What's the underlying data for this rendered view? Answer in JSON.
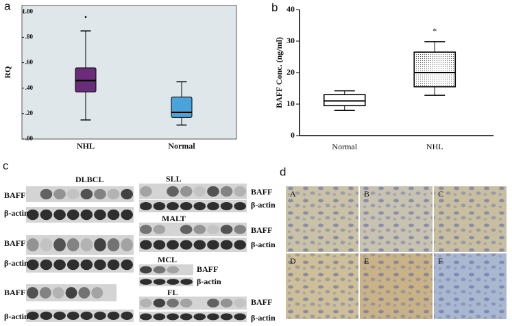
{
  "chart_data": [
    {
      "type": "box",
      "ylabel": "RQ",
      "categories": [
        "NHL",
        "Normal"
      ],
      "values": [
        {
          "low": 0.15,
          "q1": 0.37,
          "median": 0.46,
          "q3": 0.56,
          "high": 0.85
        },
        {
          "low": 0.11,
          "q1": 0.17,
          "median": 0.21,
          "q3": 0.33,
          "high": 0.45
        }
      ],
      "outliers": [
        [
          0.96
        ],
        []
      ],
      "colors": [
        "#6a2b78",
        "#4ba3dc"
      ],
      "ylim": [
        0,
        1.05
      ],
      "yticks": [
        {
          "value": 0,
          "label": ".00"
        },
        {
          "value": 0.2,
          "label": ".20"
        },
        {
          "value": 0.4,
          "label": ".40"
        },
        {
          "value": 0.6,
          "label": ".60"
        },
        {
          "value": 0.8,
          "label": ".80"
        },
        {
          "value": 1.0,
          "label": "1.00"
        }
      ],
      "frame": true,
      "background": "#dfe7ea"
    },
    {
      "type": "box",
      "ylabel": "BAFF Conc. (ng/ml)",
      "categories": [
        "Normal",
        "NHL"
      ],
      "values": [
        {
          "low": 8,
          "q1": 9.5,
          "median": 11,
          "q3": 13,
          "high": 14.2
        },
        {
          "low": 12.8,
          "q1": 15.5,
          "median": 20,
          "q3": 26.5,
          "high": 29.8
        }
      ],
      "annotations": [
        {
          "text": "*",
          "category": 1,
          "y": 33
        }
      ],
      "colors": [
        "#ffffff",
        "#e4e4e4"
      ],
      "ylim": [
        0,
        40
      ],
      "yticks": [
        0,
        10,
        20,
        30,
        40
      ],
      "frame": false
    }
  ],
  "panel_letters": [
    "a",
    "b",
    "c",
    "d"
  ],
  "blots": [
    {
      "title": "DLBCL",
      "rows": [
        "BAFF",
        "β-actin",
        "BAFF",
        "β-actin",
        "BAFF",
        "β-actin"
      ]
    },
    {
      "title": "SLL",
      "rows": [
        "BAFF",
        "β-actin"
      ]
    },
    {
      "title": "MALT",
      "rows": [
        "BAFF",
        "β-actin"
      ]
    },
    {
      "title": "MCL",
      "rows": [
        "BAFF",
        "β-actin"
      ]
    },
    {
      "title": "FL",
      "rows": [
        "BAFF",
        "β-actin"
      ]
    }
  ],
  "micrographs": [
    "A",
    "B",
    "C",
    "D",
    "E",
    "F"
  ]
}
